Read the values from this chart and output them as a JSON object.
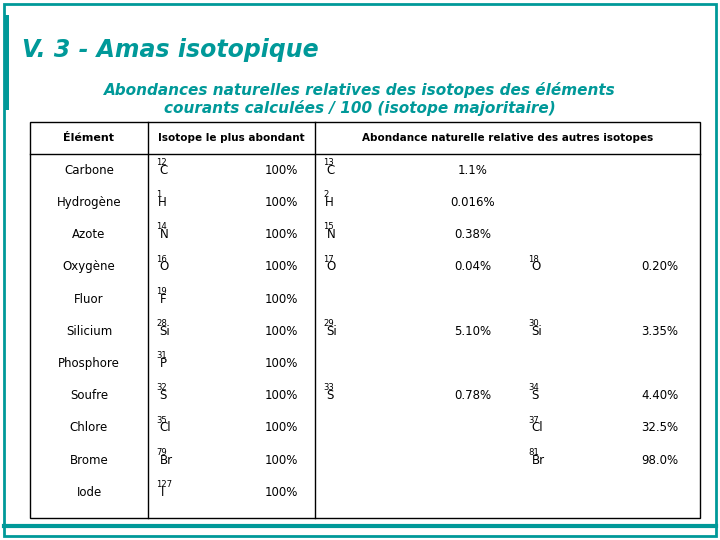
{
  "title": "V. 3 - Amas isotopique",
  "subtitle_line1": "Abondances naturelles relatives des isotopes des éléments",
  "subtitle_line2": "courants calculées / 100 (isotope majoritaire)",
  "teal_color": "#009999",
  "header_col1": "Élément",
  "header_col2": "Isotope le plus abondant",
  "header_col3": "Abondance naturelle relative des autres isotopes",
  "rows": [
    {
      "element": "Carbone",
      "iso_main_super": "12",
      "iso_main_sym": "C",
      "iso_main_val": "100%",
      "iso2_super": "13",
      "iso2_sym": "C",
      "iso2_val": "1.1%",
      "iso3_super": "",
      "iso3_sym": "",
      "iso3_val": ""
    },
    {
      "element": "Hydrogène",
      "iso_main_super": "1",
      "iso_main_sym": "H",
      "iso_main_val": "100%",
      "iso2_super": "2",
      "iso2_sym": "H",
      "iso2_val": "0.016%",
      "iso3_super": "",
      "iso3_sym": "",
      "iso3_val": ""
    },
    {
      "element": "Azote",
      "iso_main_super": "14",
      "iso_main_sym": "N",
      "iso_main_val": "100%",
      "iso2_super": "15",
      "iso2_sym": "N",
      "iso2_val": "0.38%",
      "iso3_super": "",
      "iso3_sym": "",
      "iso3_val": ""
    },
    {
      "element": "Oxygène",
      "iso_main_super": "16",
      "iso_main_sym": "O",
      "iso_main_val": "100%",
      "iso2_super": "17",
      "iso2_sym": "O",
      "iso2_val": "0.04%",
      "iso3_super": "18",
      "iso3_sym": "O",
      "iso3_val": "0.20%"
    },
    {
      "element": "Fluor",
      "iso_main_super": "19",
      "iso_main_sym": "F",
      "iso_main_val": "100%",
      "iso2_super": "",
      "iso2_sym": "",
      "iso2_val": "",
      "iso3_super": "",
      "iso3_sym": "",
      "iso3_val": ""
    },
    {
      "element": "Silicium",
      "iso_main_super": "28",
      "iso_main_sym": "Si",
      "iso_main_val": "100%",
      "iso2_super": "29",
      "iso2_sym": "Si",
      "iso2_val": "5.10%",
      "iso3_super": "30",
      "iso3_sym": "Si",
      "iso3_val": "3.35%"
    },
    {
      "element": "Phosphore",
      "iso_main_super": "31",
      "iso_main_sym": "P",
      "iso_main_val": "100%",
      "iso2_super": "",
      "iso2_sym": "",
      "iso2_val": "",
      "iso3_super": "",
      "iso3_sym": "",
      "iso3_val": ""
    },
    {
      "element": "Soufre",
      "iso_main_super": "32",
      "iso_main_sym": "S",
      "iso_main_val": "100%",
      "iso2_super": "33",
      "iso2_sym": "S",
      "iso2_val": "0.78%",
      "iso3_super": "34",
      "iso3_sym": "S",
      "iso3_val": "4.40%"
    },
    {
      "element": "Chlore",
      "iso_main_super": "35",
      "iso_main_sym": "Cl",
      "iso_main_val": "100%",
      "iso2_super": "",
      "iso2_sym": "",
      "iso2_val": "",
      "iso3_super": "37",
      "iso3_sym": "Cl",
      "iso3_val": "32.5%"
    },
    {
      "element": "Brome",
      "iso_main_super": "79",
      "iso_main_sym": "Br",
      "iso_main_val": "100%",
      "iso2_super": "",
      "iso2_sym": "",
      "iso2_val": "",
      "iso3_super": "81",
      "iso3_sym": "Br",
      "iso3_val": "98.0%"
    },
    {
      "element": "Iode",
      "iso_main_super": "127",
      "iso_main_sym": "I",
      "iso_main_val": "100%",
      "iso2_super": "",
      "iso2_sym": "",
      "iso2_val": "",
      "iso3_super": "",
      "iso3_sym": "",
      "iso3_val": ""
    }
  ],
  "fig_width": 7.2,
  "fig_height": 5.4,
  "dpi": 100
}
